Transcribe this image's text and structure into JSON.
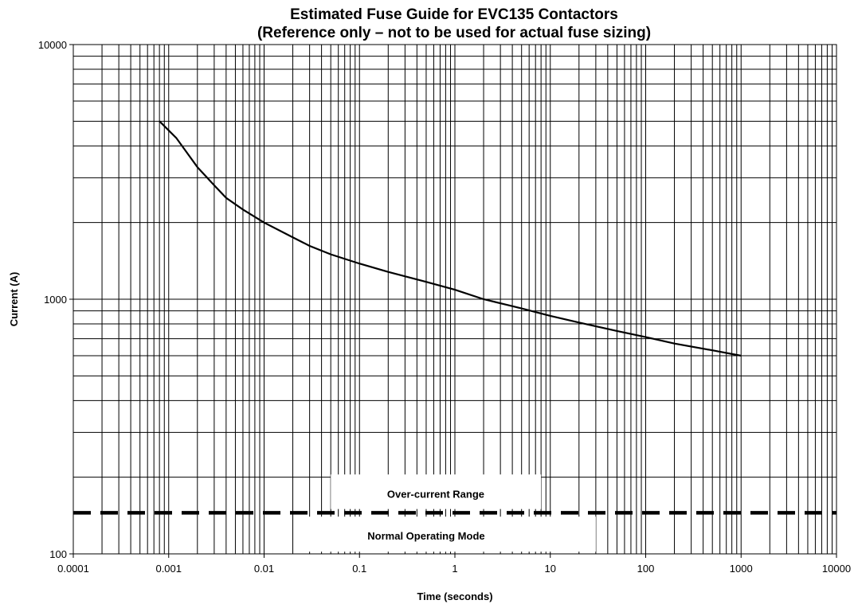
{
  "chart_data": {
    "type": "line",
    "title": "Estimated Fuse Guide for EVC135 Contactors",
    "subtitle": "(Reference only – not to be used for actual fuse sizing)",
    "xlabel": "Time (seconds)",
    "ylabel": "Current (A)",
    "x_scale": "log",
    "y_scale": "log",
    "xlim": [
      0.0001,
      10000
    ],
    "ylim": [
      100,
      10000
    ],
    "grid": true,
    "x_tick_labels": [
      "0.0001",
      "0.001",
      "0.01",
      "0.1",
      "1",
      "10",
      "100",
      "1000",
      "10000"
    ],
    "y_tick_labels": [
      "100",
      "1000",
      "10000"
    ],
    "series": [
      {
        "style": "solid",
        "x": [
          0.0008,
          0.0012,
          0.002,
          0.003,
          0.004,
          0.006,
          0.01,
          0.02,
          0.03,
          0.05,
          0.1,
          0.2,
          0.5,
          1,
          2,
          5,
          10,
          20,
          50,
          100,
          200,
          500,
          1000
        ],
        "y": [
          5000,
          4300,
          3300,
          2800,
          2500,
          2250,
          2000,
          1750,
          1620,
          1500,
          1380,
          1280,
          1170,
          1090,
          1000,
          920,
          860,
          810,
          750,
          710,
          670,
          630,
          600
        ]
      },
      {
        "style": "dashed",
        "x": [
          0.0001,
          10000
        ],
        "y": [
          145,
          145
        ]
      }
    ],
    "annotations": [
      {
        "text": "Over-current Range"
      },
      {
        "text": "Normal Operating Mode"
      }
    ]
  }
}
